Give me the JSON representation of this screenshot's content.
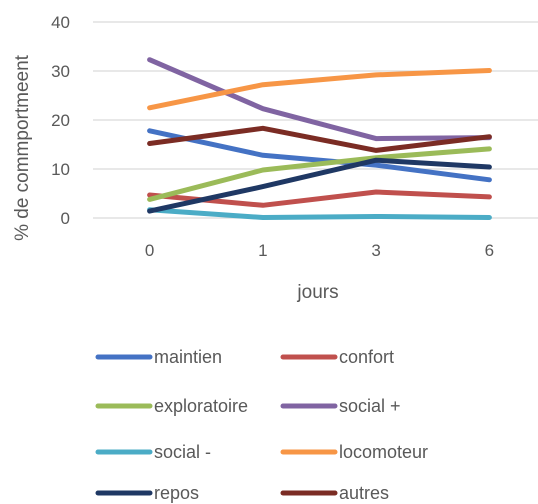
{
  "chart_data": {
    "type": "line",
    "title": "",
    "xlabel": "jours",
    "ylabel": "% de commportmeent",
    "categories": [
      "0",
      "1",
      "3",
      "6"
    ],
    "ylim": [
      0,
      40
    ],
    "yticks": [
      "0",
      "10",
      "20",
      "30",
      "40"
    ],
    "grid": true,
    "legend_position": "bottom",
    "series": [
      {
        "name": "maintien",
        "color": "#4472C4",
        "values": [
          17.8,
          12.8,
          10.8,
          7.8
        ]
      },
      {
        "name": "confort",
        "color": "#C0504D",
        "values": [
          4.7,
          2.6,
          5.3,
          4.3
        ]
      },
      {
        "name": "exploratoire",
        "color": "#9BBB59",
        "values": [
          3.8,
          9.8,
          12.3,
          14.1
        ]
      },
      {
        "name": "social +",
        "color": "#8064A2",
        "values": [
          32.3,
          22.3,
          16.2,
          16.4
        ]
      },
      {
        "name": "social -",
        "color": "#4BACC6",
        "values": [
          1.7,
          0.1,
          0.3,
          0.1
        ]
      },
      {
        "name": "locomoteur",
        "color": "#F79646",
        "values": [
          22.5,
          27.2,
          29.2,
          30.1
        ]
      },
      {
        "name": "repos",
        "color": "#1F3864",
        "values": [
          1.4,
          6.4,
          11.8,
          10.4
        ]
      },
      {
        "name": "autres",
        "color": "#7B2C24",
        "values": [
          15.2,
          18.3,
          13.8,
          16.6
        ]
      }
    ]
  }
}
